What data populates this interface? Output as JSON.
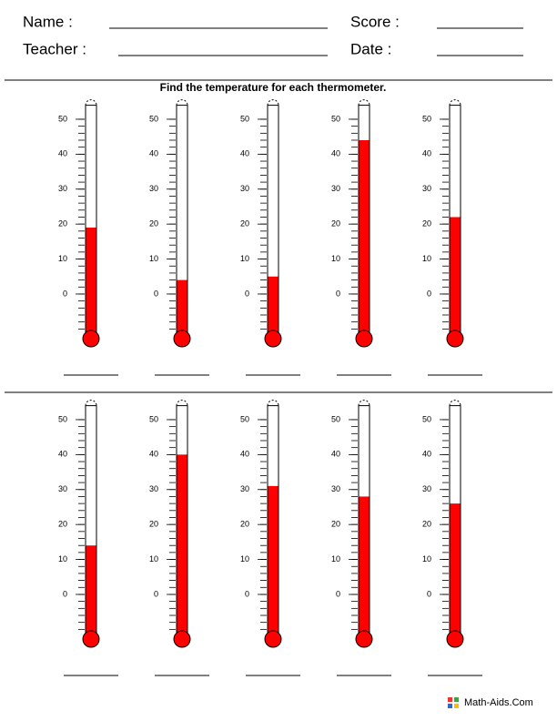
{
  "header": {
    "name_label": "Name :",
    "teacher_label": "Teacher :",
    "score_label": "Score :",
    "date_label": "Date :"
  },
  "instructions": "Find the temperature for each thermometer.",
  "scale": {
    "ylim": [
      -12,
      54
    ],
    "yticks": [
      0,
      10,
      20,
      30,
      40,
      50
    ],
    "minor_ticks": [
      -10,
      -8,
      -6,
      -4,
      -2,
      0,
      2,
      4,
      6,
      8,
      10,
      12,
      14,
      16,
      18,
      20,
      22,
      24,
      26,
      28,
      30,
      32,
      34,
      36,
      38,
      40,
      42,
      44,
      46,
      48,
      50
    ]
  },
  "rows": [
    [
      19,
      4,
      5,
      44,
      22
    ],
    [
      14,
      40,
      31,
      28,
      26
    ]
  ],
  "footer": "Math-Aids.Com"
}
